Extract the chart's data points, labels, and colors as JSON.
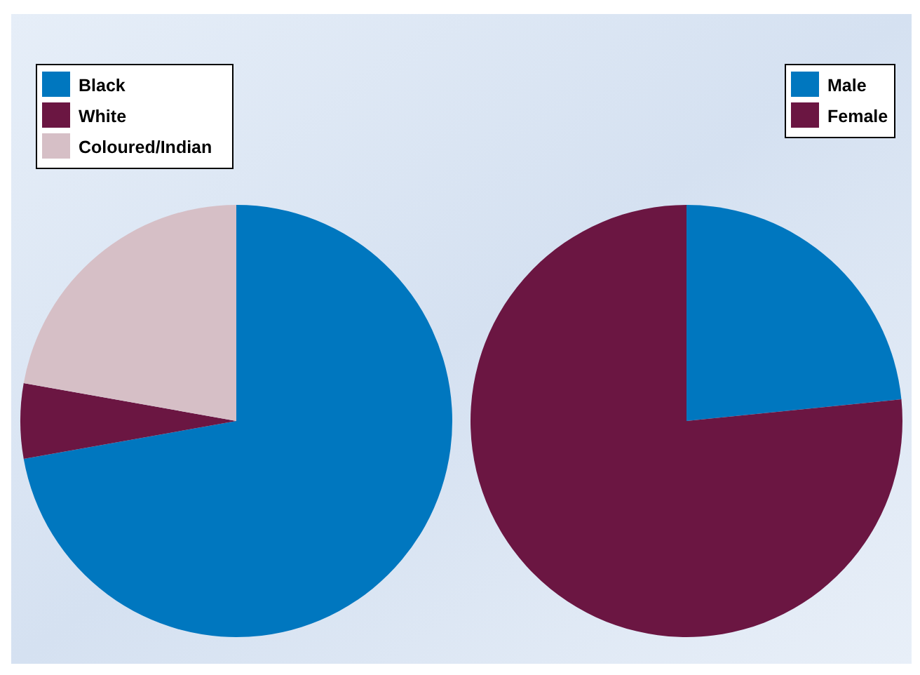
{
  "chart_data": [
    {
      "type": "pie",
      "categories": [
        "Black",
        "White",
        "Coloured/Indian"
      ],
      "values": [
        72.2,
        5.6,
        22.2
      ],
      "colors": [
        "#0077bf",
        "#6b1642",
        "#d6bfc6"
      ],
      "legend": "top left"
    },
    {
      "type": "pie",
      "categories": [
        "Male",
        "Female"
      ],
      "values": [
        23.4,
        76.6
      ],
      "colors": [
        "#0077bf",
        "#6b1642"
      ],
      "legend": "top right"
    }
  ]
}
